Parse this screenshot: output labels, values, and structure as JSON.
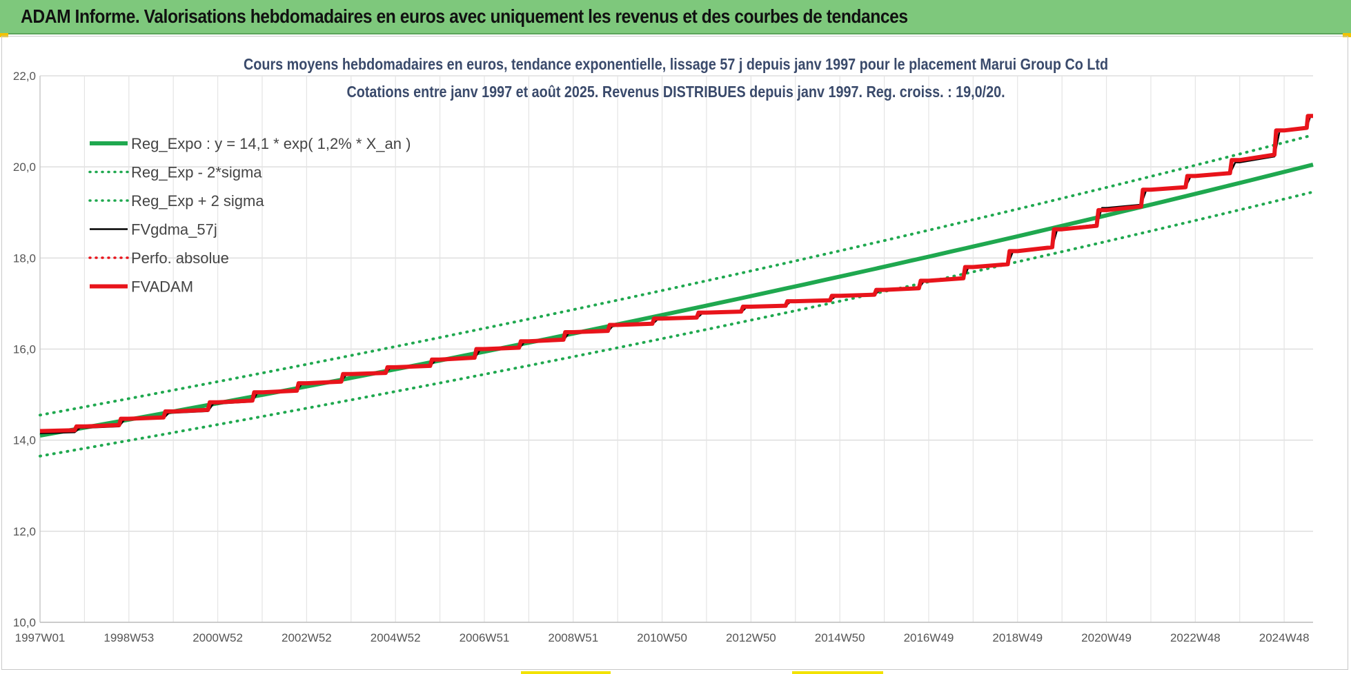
{
  "header": {
    "title": "ADAM Informe. Valorisations hebdomadaires en euros avec uniquement les revenus et des courbes de tendances"
  },
  "chart_data": {
    "type": "line",
    "title": "Cours moyens hebdomadaires en euros, tendance exponentielle, lissage 57 j depuis janv 1997 pour le placement Marui Group Co Ltd",
    "subtitle": "Cotations entre janv 1997 et août 2025.  Revenus DISTRIBUES depuis janv 1997. Reg. croiss. : 19,0/20.",
    "xlabel": "",
    "ylabel": "",
    "ylim": [
      10,
      22
    ],
    "yticks": [
      "10,0",
      "12,0",
      "14,0",
      "16,0",
      "18,0",
      "20,0",
      "22,0"
    ],
    "x_range_years": [
      1997.0,
      2025.65
    ],
    "xtick_labels": [
      {
        "label": "1997W01",
        "year": 1997.0
      },
      {
        "label": "1998W53",
        "year": 1999.0
      },
      {
        "label": "2000W52",
        "year": 2001.0
      },
      {
        "label": "2002W52",
        "year": 2003.0
      },
      {
        "label": "2004W52",
        "year": 2005.0
      },
      {
        "label": "2006W51",
        "year": 2007.0
      },
      {
        "label": "2008W51",
        "year": 2009.0
      },
      {
        "label": "2010W50",
        "year": 2011.0
      },
      {
        "label": "2012W50",
        "year": 2013.0
      },
      {
        "label": "2014W50",
        "year": 2015.0
      },
      {
        "label": "2016W49",
        "year": 2017.0
      },
      {
        "label": "2018W49",
        "year": 2019.0
      },
      {
        "label": "2020W49",
        "year": 2021.0
      },
      {
        "label": "2022W48",
        "year": 2023.0
      },
      {
        "label": "2024W48",
        "year": 2025.0
      }
    ],
    "grid": true,
    "legend_position": "top-left",
    "series": [
      {
        "name": "Reg_Expo : y = 14,1 * exp( 1,2% *  X_an )",
        "style": "solid-thick",
        "color": "#1fa84f",
        "x": [
          1997.0,
          2025.65
        ],
        "y": [
          14.1,
          20.05
        ]
      },
      {
        "name": "Reg_Exp - 2*sigma",
        "style": "dotted",
        "color": "#1fa84f",
        "x": [
          1997.0,
          2025.65
        ],
        "y": [
          13.65,
          19.45
        ]
      },
      {
        "name": "Reg_Exp + 2 sigma",
        "style": "dotted",
        "color": "#1fa84f",
        "x": [
          1997.0,
          2025.65
        ],
        "y": [
          14.55,
          20.7
        ]
      },
      {
        "name": "FVgdma_57j",
        "style": "solid",
        "color": "#000000",
        "x": [
          1997.0,
          1998.0,
          1999.0,
          2000.0,
          2001.0,
          2002.0,
          2003.0,
          2004.0,
          2005.0,
          2006.0,
          2007.0,
          2008.0,
          2009.0,
          2010.0,
          2011.0,
          2012.0,
          2013.0,
          2014.0,
          2015.0,
          2016.0,
          2017.0,
          2018.0,
          2019.0,
          2020.0,
          2021.0,
          2022.0,
          2023.0,
          2024.0,
          2025.0,
          2025.65
        ],
        "y": [
          14.15,
          14.27,
          14.45,
          14.6,
          14.8,
          15.05,
          15.25,
          15.45,
          15.6,
          15.75,
          15.98,
          16.15,
          16.35,
          16.52,
          16.65,
          16.78,
          16.92,
          17.05,
          17.15,
          17.3,
          17.5,
          17.8,
          18.15,
          18.65,
          19.1,
          19.5,
          19.8,
          20.1,
          20.8,
          21.1
        ]
      },
      {
        "name": "Perfo. absolue",
        "style": "dotted",
        "color": "#e8141b",
        "x": [],
        "y": []
      },
      {
        "name": "FVADAM",
        "style": "solid-thick-step",
        "color": "#e8141b",
        "x": [
          1997.0,
          1998.0,
          1999.0,
          2000.0,
          2001.0,
          2002.0,
          2003.0,
          2004.0,
          2005.0,
          2006.0,
          2007.0,
          2008.0,
          2009.0,
          2010.0,
          2011.0,
          2012.0,
          2013.0,
          2014.0,
          2015.0,
          2016.0,
          2017.0,
          2018.0,
          2019.0,
          2020.0,
          2021.0,
          2022.0,
          2023.0,
          2024.0,
          2025.0,
          2025.65
        ],
        "y": [
          14.2,
          14.3,
          14.47,
          14.63,
          14.83,
          15.05,
          15.25,
          15.45,
          15.6,
          15.77,
          16.0,
          16.17,
          16.37,
          16.53,
          16.67,
          16.8,
          16.93,
          17.05,
          17.17,
          17.3,
          17.5,
          17.8,
          18.15,
          18.63,
          19.05,
          19.5,
          19.8,
          20.15,
          20.8,
          21.12
        ]
      }
    ]
  }
}
